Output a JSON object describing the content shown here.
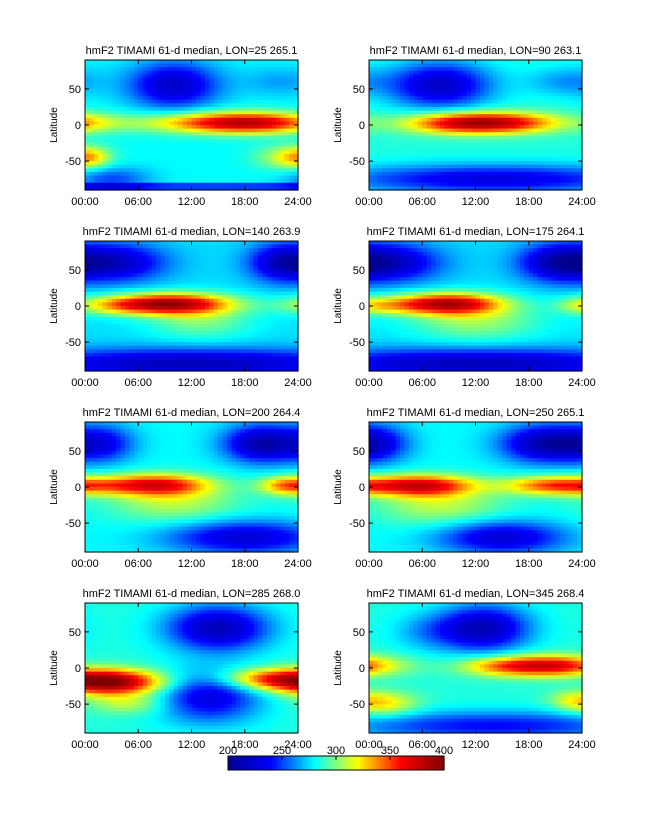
{
  "colors": {
    "colormap": [
      "#00008f",
      "#0000ff",
      "#00ffff",
      "#ffff00",
      "#ff0000",
      "#800000"
    ],
    "axis": "#000000",
    "background": "#ffffff"
  },
  "colorbar": {
    "range": [
      200,
      400
    ],
    "ticks": [
      "200",
      "250",
      "300",
      "350",
      "400"
    ]
  },
  "chart_data": [
    {
      "type": "heatmap",
      "title": "hmF2  TIMAMI 61-d median, LON=25 265.1",
      "ylabel": "Latitude",
      "xticks": [
        "00:00",
        "06:00",
        "12:00",
        "18:00",
        "24:00"
      ],
      "yticks": [
        "50",
        "0",
        "-50"
      ],
      "xlim": [
        0,
        24
      ],
      "ylim": [
        -90,
        90
      ],
      "clim": [
        200,
        400
      ],
      "pattern": "lon25"
    },
    {
      "type": "heatmap",
      "title": "hmF2  TIMAMI 61-d median, LON=90 263.1",
      "ylabel": "Latitude",
      "xticks": [
        "00:00",
        "06:00",
        "12:00",
        "18:00",
        "24:00"
      ],
      "yticks": [
        "50",
        "0",
        "-50"
      ],
      "xlim": [
        0,
        24
      ],
      "ylim": [
        -90,
        90
      ],
      "clim": [
        200,
        400
      ],
      "pattern": "lon90"
    },
    {
      "type": "heatmap",
      "title": "hmF2  TIMAMI 61-d median, LON=140 263.9",
      "ylabel": "Latitude",
      "xticks": [
        "00:00",
        "06:00",
        "12:00",
        "18:00",
        "24:00"
      ],
      "yticks": [
        "50",
        "0",
        "-50"
      ],
      "xlim": [
        0,
        24
      ],
      "ylim": [
        -90,
        90
      ],
      "clim": [
        200,
        400
      ],
      "pattern": "lon140"
    },
    {
      "type": "heatmap",
      "title": "hmF2  TIMAMI 61-d median, LON=175 264.1",
      "ylabel": "Latitude",
      "xticks": [
        "00:00",
        "06:00",
        "12:00",
        "18:00",
        "24:00"
      ],
      "yticks": [
        "50",
        "0",
        "-50"
      ],
      "xlim": [
        0,
        24
      ],
      "ylim": [
        -90,
        90
      ],
      "clim": [
        200,
        400
      ],
      "pattern": "lon175"
    },
    {
      "type": "heatmap",
      "title": "hmF2  TIMAMI 61-d median, LON=200 264.4",
      "ylabel": "Latitude",
      "xticks": [
        "00:00",
        "06:00",
        "12:00",
        "18:00",
        "24:00"
      ],
      "yticks": [
        "50",
        "0",
        "-50"
      ],
      "xlim": [
        0,
        24
      ],
      "ylim": [
        -90,
        90
      ],
      "clim": [
        200,
        400
      ],
      "pattern": "lon200"
    },
    {
      "type": "heatmap",
      "title": "hmF2  TIMAMI 61-d median, LON=250 265.1",
      "ylabel": "Latitude",
      "xticks": [
        "00:00",
        "06:00",
        "12:00",
        "18:00",
        "24:00"
      ],
      "yticks": [
        "50",
        "0",
        "-50"
      ],
      "xlim": [
        0,
        24
      ],
      "ylim": [
        -90,
        90
      ],
      "clim": [
        200,
        400
      ],
      "pattern": "lon250"
    },
    {
      "type": "heatmap",
      "title": "hmF2  TIMAMI 61-d median, LON=285 268.0",
      "ylabel": "Latitude",
      "xticks": [
        "00:00",
        "06:00",
        "12:00",
        "18:00",
        "24:00"
      ],
      "yticks": [
        "50",
        "0",
        "-50"
      ],
      "xlim": [
        0,
        24
      ],
      "ylim": [
        -90,
        90
      ],
      "clim": [
        200,
        400
      ],
      "pattern": "lon285"
    },
    {
      "type": "heatmap",
      "title": "hmF2  TIMAMI 61-d median, LON=345 268.4",
      "ylabel": "Latitude",
      "xticks": [
        "00:00",
        "06:00",
        "12:00",
        "18:00",
        "24:00"
      ],
      "yticks": [
        "50",
        "0",
        "-50"
      ],
      "xlim": [
        0,
        24
      ],
      "ylim": [
        -90,
        90
      ],
      "clim": [
        200,
        400
      ],
      "pattern": "lon345"
    }
  ]
}
